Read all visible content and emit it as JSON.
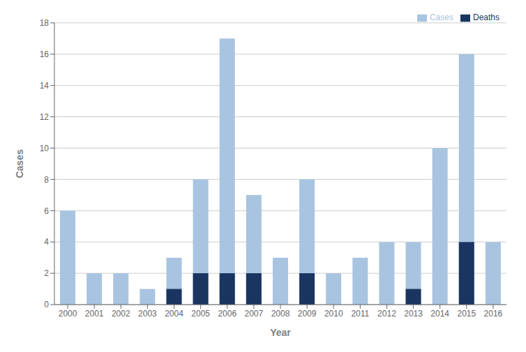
{
  "chart_data": {
    "type": "bar",
    "categories": [
      "2000",
      "2001",
      "2002",
      "2003",
      "2004",
      "2005",
      "2006",
      "2007",
      "2008",
      "2009",
      "2010",
      "2011",
      "2012",
      "2013",
      "2014",
      "2015",
      "2016"
    ],
    "series": [
      {
        "name": "Cases",
        "color": "#a8c4e0",
        "values": [
          6,
          2,
          2,
          1,
          3,
          8,
          17,
          7,
          3,
          8,
          2,
          3,
          4,
          4,
          10,
          16,
          4
        ]
      },
      {
        "name": "Deaths",
        "color": "#1a3560",
        "values": [
          0,
          0,
          0,
          0,
          1,
          2,
          2,
          2,
          0,
          2,
          0,
          0,
          0,
          1,
          0,
          4,
          0
        ]
      }
    ],
    "xlabel": "Year",
    "ylabel": "Cases",
    "ylim": [
      0,
      18
    ],
    "yticks": [
      0,
      2,
      4,
      6,
      8,
      10,
      12,
      14,
      16,
      18
    ],
    "grid": true,
    "legend": "upper right"
  }
}
